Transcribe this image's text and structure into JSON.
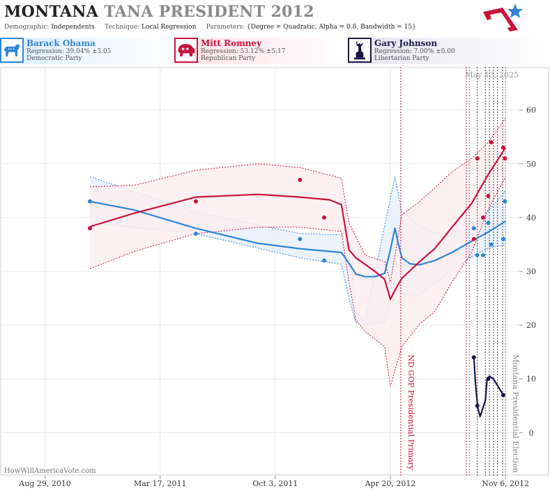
{
  "header": {
    "title_state": "MONTANA",
    "title_rest": "TANA PRESIDENT 2012",
    "demographic_label": "Demographic:",
    "demographic_value": "Independents",
    "technique_label": "Technique:",
    "technique_value": "Local Regression",
    "parameters_label": "Parameters:",
    "parameters_value": "{Degree = Quadratic, Alpha = 0.8, Bandwidth = 15}"
  },
  "candidates": [
    {
      "name": "Barack Obama",
      "regression": "Regression: 39.04% ±3.05",
      "party": "Democratic Party",
      "color": "#2f85d6",
      "icon": "donkey-icon"
    },
    {
      "name": "Mitt Romney",
      "regression": "Regression: 53.12% ±5.17",
      "party": "Republican Party",
      "color": "#c8143c",
      "icon": "elephant-icon"
    },
    {
      "name": "Gary Johnson",
      "regression": "Regression: 7.00% ±0.00",
      "party": "Libertarian Party",
      "color": "#1a1445",
      "icon": "liberty-icon"
    }
  ],
  "chart_data": {
    "type": "line",
    "date_stamp": "May 13, 2025",
    "watermark": "HowWillAmericaVote.com",
    "x_axis": {
      "type": "date",
      "range": [
        "2010-06-13",
        "2012-11-30"
      ],
      "tick_labels": [
        {
          "date": "2010-08-29",
          "label": "Aug 29, 2010"
        },
        {
          "date": "2011-03-17",
          "label": "Mar 17, 2011"
        },
        {
          "date": "2011-10-03",
          "label": "Oct 3, 2011"
        },
        {
          "date": "2012-04-20",
          "label": "Apr 20, 2012"
        },
        {
          "date": "2012-11-06",
          "label": "Nov 6, 2012"
        }
      ]
    },
    "y_axis": {
      "ylim": [
        -8,
        68
      ],
      "ticks": [
        0,
        10,
        20,
        30,
        40,
        50,
        60
      ],
      "position": "right",
      "grid": true
    },
    "events": [
      {
        "date": "2012-05-08",
        "label": "ND GOP Presidential Primary",
        "color": "#c8143c"
      },
      {
        "date": "2012-11-06",
        "label": "Montana Presidential Election",
        "color": "#888888"
      }
    ],
    "poll_lines": [
      {
        "date": "2012-08-30",
        "color": "#c8143c"
      },
      {
        "date": "2012-09-04",
        "color": "#2f85d6"
      },
      {
        "date": "2012-09-18",
        "color": "#444444"
      },
      {
        "date": "2012-10-02",
        "color": "#444444"
      },
      {
        "date": "2012-10-09",
        "color": "#444444"
      },
      {
        "date": "2012-10-16",
        "color": "#444444"
      },
      {
        "date": "2012-10-23",
        "color": "#444444"
      },
      {
        "date": "2012-11-01",
        "color": "#444444"
      }
    ],
    "series": [
      {
        "name": "Barack Obama",
        "color": "#2f85d6",
        "band_fill": "#e8f0fb",
        "points": [
          [
            "2010-11-15",
            43
          ],
          [
            "2011-05-18",
            37
          ],
          [
            "2011-11-15",
            36
          ],
          [
            "2011-12-27",
            32
          ],
          [
            "2012-09-12",
            38
          ],
          [
            "2012-09-18",
            33
          ],
          [
            "2012-09-28",
            33
          ],
          [
            "2012-10-07",
            39
          ],
          [
            "2012-10-12",
            35
          ],
          [
            "2012-11-02",
            36
          ],
          [
            "2012-11-05",
            43
          ]
        ],
        "fit": [
          [
            "2010-11-15",
            43
          ],
          [
            "2011-01-31",
            41.4
          ],
          [
            "2011-05-18",
            38
          ],
          [
            "2011-09-03",
            35.2
          ],
          [
            "2011-11-15",
            34.2
          ],
          [
            "2012-01-26",
            33.5
          ],
          [
            "2012-02-08",
            31.5
          ],
          [
            "2012-02-20",
            29.5
          ],
          [
            "2012-03-07",
            29
          ],
          [
            "2012-03-24",
            29
          ],
          [
            "2012-04-10",
            29.6
          ],
          [
            "2012-04-20",
            34
          ],
          [
            "2012-04-28",
            38
          ],
          [
            "2012-05-03",
            35.5
          ],
          [
            "2012-05-10",
            32.5
          ],
          [
            "2012-05-24",
            31.4
          ],
          [
            "2012-06-10",
            31.2
          ],
          [
            "2012-07-06",
            32
          ],
          [
            "2012-08-05",
            33.5
          ],
          [
            "2012-09-08",
            35.6
          ],
          [
            "2012-10-07",
            37.3
          ],
          [
            "2012-11-06",
            39.3
          ]
        ],
        "upper": [
          [
            "2010-11-15",
            47.6
          ],
          [
            "2011-05-18",
            41
          ],
          [
            "2011-11-15",
            37
          ],
          [
            "2012-01-26",
            36.8
          ],
          [
            "2012-02-08",
            35
          ],
          [
            "2012-02-20",
            22.5
          ],
          [
            "2012-03-07",
            20.7
          ],
          [
            "2012-04-10",
            38.5
          ],
          [
            "2012-04-28",
            47.6
          ],
          [
            "2012-05-10",
            41
          ],
          [
            "2012-06-10",
            38.5
          ],
          [
            "2012-07-06",
            37.2
          ],
          [
            "2012-08-05",
            37
          ],
          [
            "2012-09-08",
            38.3
          ],
          [
            "2012-10-07",
            41.2
          ],
          [
            "2012-11-06",
            45
          ]
        ],
        "lower": [
          [
            "2010-11-15",
            39
          ],
          [
            "2011-05-18",
            37
          ],
          [
            "2011-11-15",
            32.5
          ],
          [
            "2012-01-26",
            31.3
          ],
          [
            "2012-02-08",
            25
          ],
          [
            "2012-02-20",
            20.4
          ],
          [
            "2012-03-07",
            20.2
          ],
          [
            "2012-04-10",
            20.5
          ],
          [
            "2012-04-28",
            28.2
          ],
          [
            "2012-05-10",
            25.7
          ],
          [
            "2012-06-10",
            25.5
          ],
          [
            "2012-07-06",
            27.7
          ],
          [
            "2012-08-05",
            30.2
          ],
          [
            "2012-09-08",
            32.7
          ],
          [
            "2012-10-07",
            34.3
          ],
          [
            "2012-11-06",
            34.9
          ]
        ]
      },
      {
        "name": "Mitt Romney",
        "color": "#c8143c",
        "band_fill": "#fcedf0",
        "points": [
          [
            "2010-11-15",
            38
          ],
          [
            "2011-05-18",
            43
          ],
          [
            "2011-11-15",
            47
          ],
          [
            "2011-12-27",
            40
          ],
          [
            "2012-09-12",
            36
          ],
          [
            "2012-09-18",
            51
          ],
          [
            "2012-09-28",
            40
          ],
          [
            "2012-10-07",
            44
          ],
          [
            "2012-10-12",
            54
          ],
          [
            "2012-11-02",
            53
          ],
          [
            "2012-11-05",
            51
          ]
        ],
        "fit": [
          [
            "2010-11-15",
            38.3
          ],
          [
            "2011-01-31",
            40.8
          ],
          [
            "2011-05-18",
            43.8
          ],
          [
            "2011-09-03",
            44.3
          ],
          [
            "2011-11-15",
            43.8
          ],
          [
            "2012-01-05",
            43.3
          ],
          [
            "2012-01-26",
            42.4
          ],
          [
            "2012-02-08",
            34
          ],
          [
            "2012-02-20",
            32.5
          ],
          [
            "2012-03-24",
            30
          ],
          [
            "2012-04-10",
            28.5
          ],
          [
            "2012-04-20",
            24.8
          ],
          [
            "2012-04-28",
            26.5
          ],
          [
            "2012-05-10",
            28.7
          ],
          [
            "2012-06-10",
            31.8
          ],
          [
            "2012-07-06",
            34.2
          ],
          [
            "2012-08-05",
            38.2
          ],
          [
            "2012-09-08",
            42.6
          ],
          [
            "2012-10-07",
            48
          ],
          [
            "2012-11-06",
            53
          ]
        ],
        "upper": [
          [
            "2010-11-15",
            45.7
          ],
          [
            "2011-01-31",
            46
          ],
          [
            "2011-05-18",
            48.8
          ],
          [
            "2011-09-03",
            50
          ],
          [
            "2011-11-15",
            49.3
          ],
          [
            "2012-01-26",
            47.3
          ],
          [
            "2012-02-08",
            39
          ],
          [
            "2012-03-07",
            33
          ],
          [
            "2012-04-10",
            31.8
          ],
          [
            "2012-04-20",
            28
          ],
          [
            "2012-05-10",
            40.5
          ],
          [
            "2012-06-10",
            43
          ],
          [
            "2012-07-06",
            45.5
          ],
          [
            "2012-08-05",
            48.5
          ],
          [
            "2012-09-08",
            51
          ],
          [
            "2012-10-07",
            54
          ],
          [
            "2012-11-06",
            58.5
          ]
        ],
        "lower": [
          [
            "2010-11-15",
            30.5
          ],
          [
            "2011-01-31",
            33.7
          ],
          [
            "2011-05-18",
            37
          ],
          [
            "2011-09-03",
            38.2
          ],
          [
            "2011-11-15",
            38.2
          ],
          [
            "2012-01-26",
            37.4
          ],
          [
            "2012-02-08",
            28
          ],
          [
            "2012-02-20",
            21
          ],
          [
            "2012-03-07",
            18.8
          ],
          [
            "2012-04-10",
            16
          ],
          [
            "2012-04-20",
            8.6
          ],
          [
            "2012-05-10",
            16
          ],
          [
            "2012-06-10",
            20.2
          ],
          [
            "2012-07-06",
            22.5
          ],
          [
            "2012-08-05",
            28
          ],
          [
            "2012-09-08",
            33.5
          ],
          [
            "2012-10-07",
            41.5
          ],
          [
            "2012-11-06",
            47.5
          ]
        ]
      },
      {
        "name": "Gary Johnson",
        "color": "#1a1445",
        "points": [
          [
            "2012-09-12",
            14
          ],
          [
            "2012-09-18",
            5
          ],
          [
            "2012-10-07",
            10
          ],
          [
            "2012-11-02",
            7
          ]
        ],
        "fit": [
          [
            "2012-09-12",
            14
          ],
          [
            "2012-09-15",
            9
          ],
          [
            "2012-09-19",
            4.5
          ],
          [
            "2012-09-23",
            3
          ],
          [
            "2012-10-02",
            6
          ],
          [
            "2012-10-05",
            10
          ],
          [
            "2012-10-09",
            10.5
          ],
          [
            "2012-10-16",
            10
          ],
          [
            "2012-11-02",
            7
          ]
        ]
      }
    ]
  }
}
